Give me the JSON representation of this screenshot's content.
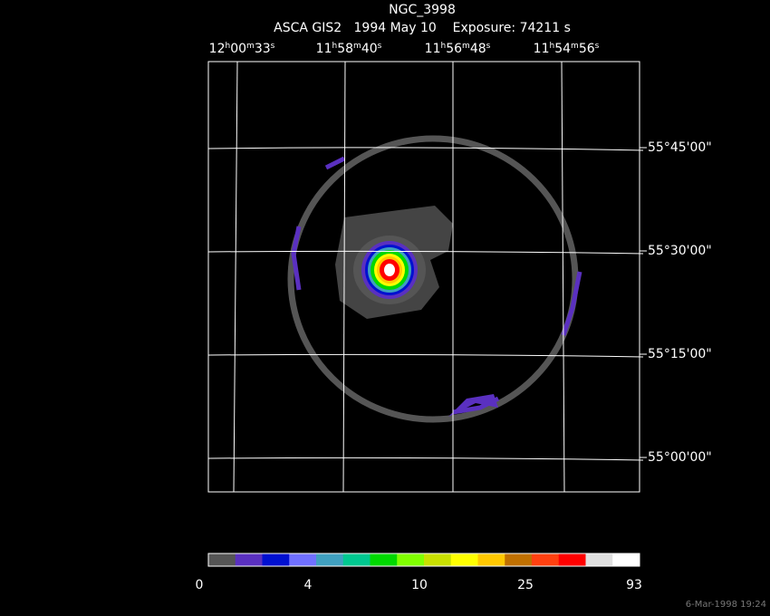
{
  "header": {
    "title": "NGC_3998",
    "subtitle": "ASCA GIS2   1994 May 10    Exposure: 74211 s"
  },
  "ra_labels": [
    [
      "12",
      "h",
      "00",
      "m",
      "33",
      "s"
    ],
    [
      "11",
      "h",
      "58",
      "m",
      "40",
      "s"
    ],
    [
      "11",
      "h",
      "56",
      "m",
      "48",
      "s"
    ],
    [
      "11",
      "h",
      "54",
      "m",
      "56",
      "s"
    ]
  ],
  "dec_labels": [
    "55°45'00\"",
    "55°30'00\"",
    "55°15'00\"",
    "55°00'00\""
  ],
  "colorbar": {
    "colors": [
      "#555555",
      "#5a30c0",
      "#0010d0",
      "#7070ff",
      "#40a0c0",
      "#00c890",
      "#00d800",
      "#80ff00",
      "#c8e000",
      "#ffff00",
      "#ffc800",
      "#c07000",
      "#ff4010",
      "#ff0000",
      "#e0e0e0",
      "#ffffff"
    ],
    "labels": [
      0,
      4,
      10,
      25,
      93
    ]
  },
  "timestamp": "6-Mar-1998 19:24"
}
